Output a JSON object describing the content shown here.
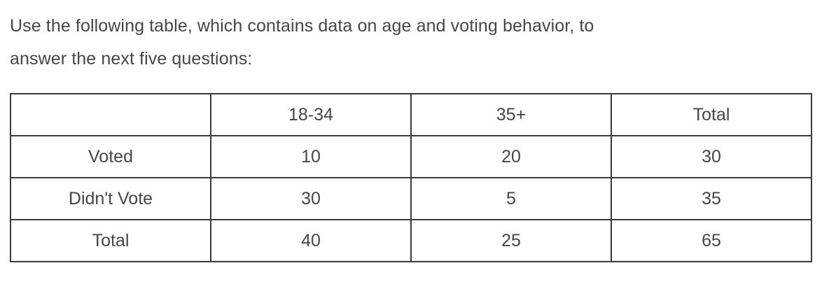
{
  "intro": {
    "text": "Use the following table, which contains data on age and voting behavior, to answer the next five questions:",
    "lines": [
      "Use the following table, which contains data on age and voting behavior, to",
      "answer the next five questions:"
    ]
  },
  "table": {
    "corner": "",
    "column_headers": [
      "18-34",
      "35+",
      "Total"
    ],
    "rows": [
      {
        "label": "Voted",
        "values": [
          "10",
          "20",
          "30"
        ]
      },
      {
        "label": "Didn't Vote",
        "values": [
          "30",
          "5",
          "35"
        ]
      },
      {
        "label": "Total",
        "values": [
          "40",
          "25",
          "65"
        ]
      }
    ]
  },
  "colors": {
    "text": "#464646",
    "table_border": "#3a3a3a",
    "background": "#ffffff"
  }
}
